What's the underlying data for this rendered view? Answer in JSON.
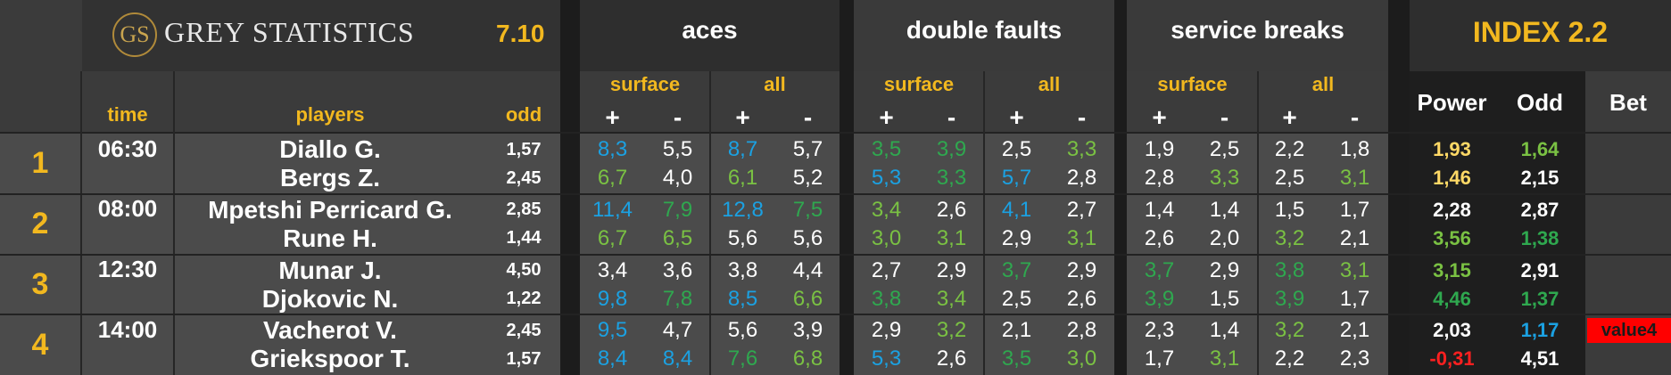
{
  "brand": {
    "monogram": "GS",
    "name": "GREY STATISTICS",
    "version": "7.10"
  },
  "groups": {
    "aces": "aces",
    "double_faults": "double faults",
    "service_breaks": "service breaks",
    "index": "INDEX 2.2"
  },
  "sub": {
    "surface": "surface",
    "all": "all",
    "plus": "+",
    "minus": "-"
  },
  "cols": {
    "time": "time",
    "players": "players",
    "odd": "odd",
    "power": "Power",
    "odd2": "Odd",
    "bet": "Bet"
  },
  "colors": {
    "blue": "#1ba1e2",
    "green": "#7ac143",
    "dgreen": "#2fa84f",
    "yellow": "#ffd966",
    "red": "#ff2020",
    "white": "#ffffff"
  },
  "matches": [
    {
      "num": "1",
      "time": "06:30",
      "players": [
        {
          "name": "Diallo G.",
          "odd": "1,57",
          "stats": [
            [
              "8,3",
              "blue"
            ],
            [
              "5,5",
              "white"
            ],
            [
              "8,7",
              "blue"
            ],
            [
              "5,7",
              "white"
            ],
            [
              "3,5",
              "dgreen"
            ],
            [
              "3,9",
              "dgreen"
            ],
            [
              "2,5",
              "white"
            ],
            [
              "3,3",
              "green"
            ],
            [
              "1,9",
              "white"
            ],
            [
              "2,5",
              "white"
            ],
            [
              "2,2",
              "white"
            ],
            [
              "1,8",
              "white"
            ]
          ],
          "power": [
            "1,93",
            "yellow"
          ],
          "odd2": [
            "1,64",
            "green"
          ]
        },
        {
          "name": "Bergs Z.",
          "odd": "2,45",
          "stats": [
            [
              "6,7",
              "green"
            ],
            [
              "4,0",
              "white"
            ],
            [
              "6,1",
              "green"
            ],
            [
              "5,2",
              "white"
            ],
            [
              "5,3",
              "blue"
            ],
            [
              "3,3",
              "dgreen"
            ],
            [
              "5,7",
              "blue"
            ],
            [
              "2,8",
              "white"
            ],
            [
              "2,8",
              "white"
            ],
            [
              "3,3",
              "green"
            ],
            [
              "2,5",
              "white"
            ],
            [
              "3,1",
              "green"
            ]
          ],
          "power": [
            "1,46",
            "yellow"
          ],
          "odd2": [
            "2,15",
            "white"
          ]
        }
      ],
      "bet": ""
    },
    {
      "num": "2",
      "time": "08:00",
      "players": [
        {
          "name": "Mpetshi Perricard G.",
          "odd": "2,85",
          "stats": [
            [
              "11,4",
              "blue"
            ],
            [
              "7,9",
              "dgreen"
            ],
            [
              "12,8",
              "blue"
            ],
            [
              "7,5",
              "dgreen"
            ],
            [
              "3,4",
              "green"
            ],
            [
              "2,6",
              "white"
            ],
            [
              "4,1",
              "blue"
            ],
            [
              "2,7",
              "white"
            ],
            [
              "1,4",
              "white"
            ],
            [
              "1,4",
              "white"
            ],
            [
              "1,5",
              "white"
            ],
            [
              "1,7",
              "white"
            ]
          ],
          "power": [
            "2,28",
            "white"
          ],
          "odd2": [
            "2,87",
            "white"
          ]
        },
        {
          "name": "Rune H.",
          "odd": "1,44",
          "stats": [
            [
              "6,7",
              "green"
            ],
            [
              "6,5",
              "green"
            ],
            [
              "5,6",
              "white"
            ],
            [
              "5,6",
              "white"
            ],
            [
              "3,0",
              "green"
            ],
            [
              "3,1",
              "green"
            ],
            [
              "2,9",
              "white"
            ],
            [
              "3,1",
              "green"
            ],
            [
              "2,6",
              "white"
            ],
            [
              "2,0",
              "white"
            ],
            [
              "3,2",
              "green"
            ],
            [
              "2,1",
              "white"
            ]
          ],
          "power": [
            "3,56",
            "green"
          ],
          "odd2": [
            "1,38",
            "dgreen"
          ]
        }
      ],
      "bet": ""
    },
    {
      "num": "3",
      "time": "12:30",
      "players": [
        {
          "name": "Munar J.",
          "odd": "4,50",
          "stats": [
            [
              "3,4",
              "white"
            ],
            [
              "3,6",
              "white"
            ],
            [
              "3,8",
              "white"
            ],
            [
              "4,4",
              "white"
            ],
            [
              "2,7",
              "white"
            ],
            [
              "2,9",
              "white"
            ],
            [
              "3,7",
              "dgreen"
            ],
            [
              "2,9",
              "white"
            ],
            [
              "3,7",
              "dgreen"
            ],
            [
              "2,9",
              "white"
            ],
            [
              "3,8",
              "dgreen"
            ],
            [
              "3,1",
              "green"
            ]
          ],
          "power": [
            "3,15",
            "green"
          ],
          "odd2": [
            "2,91",
            "white"
          ]
        },
        {
          "name": "Djokovic N.",
          "odd": "1,22",
          "stats": [
            [
              "9,8",
              "blue"
            ],
            [
              "7,8",
              "dgreen"
            ],
            [
              "8,5",
              "blue"
            ],
            [
              "6,6",
              "green"
            ],
            [
              "3,8",
              "dgreen"
            ],
            [
              "3,4",
              "green"
            ],
            [
              "2,5",
              "white"
            ],
            [
              "2,6",
              "white"
            ],
            [
              "3,9",
              "dgreen"
            ],
            [
              "1,5",
              "white"
            ],
            [
              "3,9",
              "dgreen"
            ],
            [
              "1,7",
              "white"
            ]
          ],
          "power": [
            "4,46",
            "dgreen"
          ],
          "odd2": [
            "1,37",
            "dgreen"
          ]
        }
      ],
      "bet": ""
    },
    {
      "num": "4",
      "time": "14:00",
      "players": [
        {
          "name": "Vacherot V.",
          "odd": "2,45",
          "stats": [
            [
              "9,5",
              "blue"
            ],
            [
              "4,7",
              "white"
            ],
            [
              "5,6",
              "white"
            ],
            [
              "3,9",
              "white"
            ],
            [
              "2,9",
              "white"
            ],
            [
              "3,2",
              "green"
            ],
            [
              "2,1",
              "white"
            ],
            [
              "2,8",
              "white"
            ],
            [
              "2,3",
              "white"
            ],
            [
              "1,4",
              "white"
            ],
            [
              "3,2",
              "green"
            ],
            [
              "2,1",
              "white"
            ]
          ],
          "power": [
            "2,03",
            "white"
          ],
          "odd2": [
            "1,17",
            "blue"
          ]
        },
        {
          "name": "Griekspoor T.",
          "odd": "1,57",
          "stats": [
            [
              "8,4",
              "blue"
            ],
            [
              "8,4",
              "blue"
            ],
            [
              "7,6",
              "dgreen"
            ],
            [
              "6,8",
              "green"
            ],
            [
              "5,3",
              "blue"
            ],
            [
              "2,6",
              "white"
            ],
            [
              "3,5",
              "dgreen"
            ],
            [
              "3,0",
              "green"
            ],
            [
              "1,7",
              "white"
            ],
            [
              "3,1",
              "green"
            ],
            [
              "2,2",
              "white"
            ],
            [
              "2,3",
              "white"
            ]
          ],
          "power": [
            "-0,31",
            "red"
          ],
          "odd2": [
            "4,51",
            "white"
          ]
        }
      ],
      "bet": "value4"
    }
  ]
}
